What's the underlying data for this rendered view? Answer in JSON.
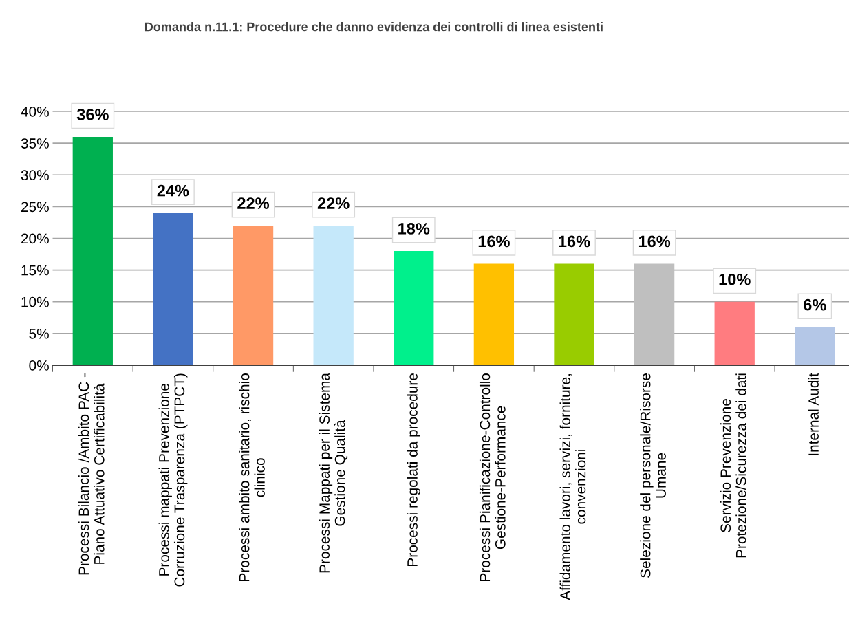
{
  "chart_data": {
    "type": "bar",
    "title": "Domanda n.11.1: Procedure che danno evidenza dei controlli di linea esistenti",
    "categories": [
      "Processi Bilancio /Ambito PAC -\nPiano Attuativo Certificabilità",
      "Processi mappati Prevenzione\nCorruzione Trasparenza (PTPCT)",
      "Processi ambito sanitario, rischio\nclinico",
      "Processi Mappati per il Sistema\nGestione Qualità",
      "Processi regolati da procedure",
      "Processi Pianificazione-Controllo\nGestione-Performance",
      "Affidamento lavori, servizi, forniture,\nconvenzioni",
      "Selezione del personale/Risorse\nUmane",
      "Servizio Prevenzione\nProtezione/Sicurezza dei dati",
      "Internal Audit"
    ],
    "values": [
      36,
      24,
      22,
      22,
      18,
      16,
      16,
      16,
      10,
      6
    ],
    "colors": [
      "#00b050",
      "#4472c4",
      "#ff9966",
      "#c5e8fa",
      "#00f08c",
      "#ffc000",
      "#99cc00",
      "#bfbfbf",
      "#ff7c80",
      "#b4c7e7"
    ],
    "value_labels": [
      "36%",
      "24%",
      "22%",
      "22%",
      "18%",
      "16%",
      "16%",
      "16%",
      "10%",
      "6%"
    ],
    "ylim": [
      0,
      40
    ],
    "yticks": [
      {
        "value": 0,
        "label": "0%"
      },
      {
        "value": 5,
        "label": "5%"
      },
      {
        "value": 10,
        "label": "10%"
      },
      {
        "value": 15,
        "label": "15%"
      },
      {
        "value": 20,
        "label": "20%"
      },
      {
        "value": 25,
        "label": "25%"
      },
      {
        "value": 30,
        "label": "30%"
      },
      {
        "value": 35,
        "label": "35%"
      },
      {
        "value": 40,
        "label": "40%"
      }
    ],
    "grid": "y"
  }
}
